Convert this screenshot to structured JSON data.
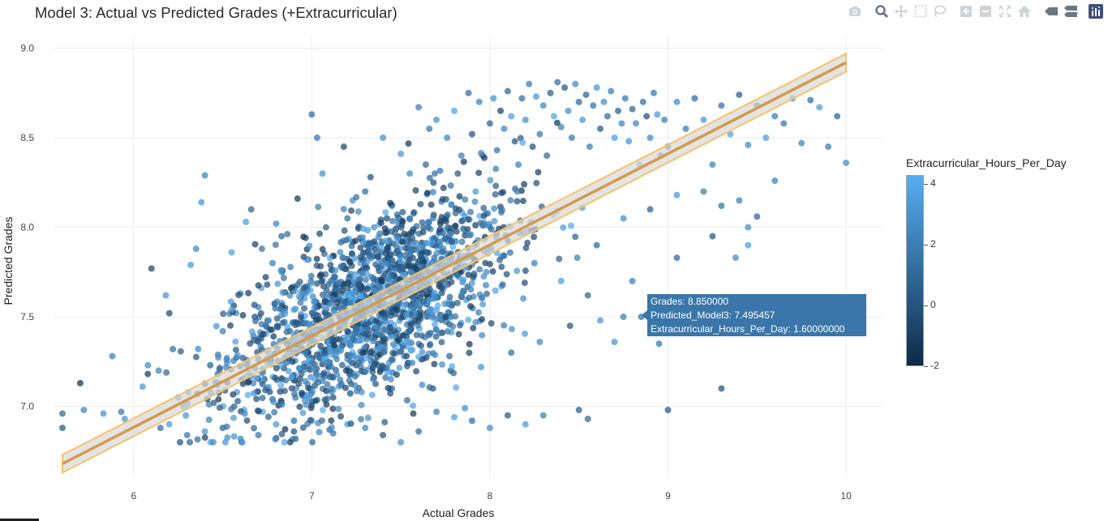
{
  "title": "Model 3: Actual vs Predicted Grades (+Extracurricular)",
  "toolbar": {
    "buttons": [
      "camera-icon",
      "zoom-icon",
      "pan-icon",
      "box-select-icon",
      "lasso-icon",
      "zoom-in-icon",
      "zoom-out-icon",
      "autoscale-icon",
      "reset-axes-icon",
      "spike-lines-icon",
      "compare-hover-icon",
      "plotly-logo-icon"
    ]
  },
  "tooltip": {
    "line1": "Grades:  8.850000",
    "line2": "Predicted_Model3: 7.495457",
    "line3": "Extracurricular_Hours_Per_Day:  1.60000000"
  },
  "colorbar": {
    "title": "Extracurricular_Hours_Per_Day",
    "ticks": [
      "4",
      "2",
      "0",
      "-2"
    ],
    "tick_values": [
      4,
      2,
      0,
      -2
    ],
    "range": [
      -2,
      4.3
    ],
    "color_low": "#0e2a47",
    "color_high": "#56aef2"
  },
  "chart_data": {
    "type": "scatter",
    "title": "Model 3: Actual vs Predicted Grades (+Extracurricular)",
    "xlabel": "Actual Grades",
    "ylabel": "Predicted Grades",
    "xlim": [
      5.55,
      10.2
    ],
    "ylim": [
      6.6,
      9.07
    ],
    "x_ticks": [
      6,
      7,
      8,
      9,
      10
    ],
    "x_tick_labels": [
      "6",
      "7",
      "8",
      "9",
      "10"
    ],
    "y_ticks": [
      7.0,
      7.5,
      8.0,
      8.5,
      9.0
    ],
    "y_tick_labels": [
      "7.0",
      "7.5",
      "8.0",
      "8.5",
      "9.0"
    ],
    "grid": true,
    "point_count_estimate": 2000,
    "color_variable": "Extracurricular_Hours_Per_Day",
    "color_range": [
      -2,
      4.3
    ],
    "fit_line": {
      "x": [
        5.6,
        10.0
      ],
      "y": [
        6.68,
        8.92
      ],
      "band_halfwidth": 0.05,
      "line_color": "#d49a4a",
      "band_color": "#f5c26b"
    },
    "points": [
      [
        5.6,
        6.96,
        1.2
      ],
      [
        5.6,
        6.88,
        0.4
      ],
      [
        5.7,
        7.13,
        -1.3
      ],
      [
        5.72,
        6.98,
        2.6
      ],
      [
        5.83,
        6.96,
        3.0
      ],
      [
        5.88,
        7.28,
        2.2
      ],
      [
        5.93,
        6.97,
        1.8
      ],
      [
        5.95,
        6.93,
        3.2
      ],
      [
        6.05,
        7.11,
        3.5
      ],
      [
        6.08,
        7.23,
        2.8
      ],
      [
        6.1,
        7.77,
        -0.4
      ],
      [
        6.14,
        7.2,
        2.4
      ],
      [
        6.18,
        7.62,
        3.1
      ],
      [
        6.2,
        7.52,
        -0.2
      ],
      [
        6.22,
        7.32,
        1.5
      ],
      [
        6.25,
        7.05,
        3.4
      ],
      [
        6.3,
        7.02,
        2.0
      ],
      [
        6.32,
        7.79,
        3.6
      ],
      [
        6.35,
        7.88,
        2.7
      ],
      [
        6.38,
        8.14,
        3.3
      ],
      [
        6.4,
        8.29,
        2.5
      ],
      [
        6.43,
        7.23,
        0.8
      ],
      [
        6.47,
        7.12,
        1.0
      ],
      [
        6.5,
        7.42,
        2.2
      ],
      [
        6.55,
        7.86,
        3.8
      ],
      [
        6.6,
        7.63,
        1.9
      ],
      [
        6.63,
        8.03,
        3.6
      ],
      [
        6.66,
        8.1,
        1.1
      ],
      [
        6.68,
        7.5,
        0.2
      ],
      [
        6.7,
        7.36,
        2.9
      ],
      [
        6.72,
        7.88,
        1.7
      ],
      [
        6.75,
        7.68,
        0.0
      ],
      [
        6.78,
        7.8,
        2.3
      ],
      [
        6.8,
        8.02,
        2.6
      ],
      [
        6.83,
        7.95,
        1.2
      ],
      [
        6.85,
        7.55,
        -0.6
      ],
      [
        6.88,
        7.28,
        3.0
      ],
      [
        6.9,
        6.92,
        1.4
      ],
      [
        6.92,
        8.16,
        -1.0
      ],
      [
        6.95,
        7.63,
        1.8
      ],
      [
        6.98,
        7.82,
        0.6
      ],
      [
        7.0,
        8.63,
        1.3
      ],
      [
        7.03,
        8.5,
        2.0
      ],
      [
        7.06,
        8.3,
        3.1
      ],
      [
        7.08,
        8.0,
        0.9
      ],
      [
        7.1,
        7.45,
        2.5
      ],
      [
        7.12,
        6.85,
        1.7
      ],
      [
        7.15,
        7.6,
        3.2
      ],
      [
        7.18,
        8.45,
        -0.3
      ],
      [
        7.2,
        8.05,
        1.5
      ],
      [
        7.23,
        8.15,
        2.8
      ],
      [
        7.25,
        7.23,
        0.2
      ],
      [
        7.28,
        7.76,
        3.7
      ],
      [
        7.3,
        8.2,
        1.4
      ],
      [
        7.33,
        8.28,
        0.1
      ],
      [
        7.35,
        8.0,
        2.9
      ],
      [
        7.38,
        7.3,
        1.9
      ],
      [
        7.4,
        8.5,
        3.0
      ],
      [
        7.43,
        7.67,
        -0.8
      ],
      [
        7.45,
        8.12,
        2.4
      ],
      [
        7.48,
        8.07,
        1.2
      ],
      [
        7.5,
        8.41,
        3.4
      ],
      [
        7.53,
        7.95,
        0.7
      ],
      [
        7.55,
        8.3,
        2.6
      ],
      [
        7.57,
        6.96,
        -1.1
      ],
      [
        7.6,
        8.67,
        2.2
      ],
      [
        7.62,
        7.8,
        3.5
      ],
      [
        7.64,
        8.35,
        1.0
      ],
      [
        7.66,
        8.55,
        2.0
      ],
      [
        7.68,
        7.1,
        0.3
      ],
      [
        7.7,
        8.6,
        3.1
      ],
      [
        7.72,
        7.97,
        1.6
      ],
      [
        7.74,
        8.22,
        -0.2
      ],
      [
        7.76,
        8.5,
        2.7
      ],
      [
        7.78,
        7.5,
        1.3
      ],
      [
        7.8,
        8.65,
        3.8
      ],
      [
        7.82,
        8.3,
        0.5
      ],
      [
        7.84,
        8.4,
        2.1
      ],
      [
        7.86,
        6.99,
        2.9
      ],
      [
        7.88,
        8.75,
        1.5
      ],
      [
        7.9,
        8.52,
        0.1
      ],
      [
        7.92,
        8.2,
        3.4
      ],
      [
        7.94,
        8.7,
        2.3
      ],
      [
        7.96,
        8.4,
        1.1
      ],
      [
        7.98,
        7.75,
        2.8
      ],
      [
        8.0,
        8.58,
        0.8
      ],
      [
        8.02,
        8.72,
        3.1
      ],
      [
        8.04,
        8.43,
        1.7
      ],
      [
        8.06,
        8.65,
        -0.5
      ],
      [
        8.08,
        8.55,
        2.5
      ],
      [
        8.1,
        8.76,
        1.0
      ],
      [
        8.12,
        8.62,
        3.6
      ],
      [
        8.14,
        8.48,
        0.4
      ],
      [
        8.16,
        8.35,
        2.2
      ],
      [
        8.18,
        8.72,
        1.4
      ],
      [
        8.2,
        8.6,
        3.0
      ],
      [
        8.22,
        8.8,
        2.0
      ],
      [
        8.24,
        8.45,
        0.0
      ],
      [
        8.26,
        8.73,
        3.3
      ],
      [
        8.28,
        8.52,
        1.8
      ],
      [
        8.3,
        8.68,
        2.6
      ],
      [
        8.32,
        8.4,
        1.2
      ],
      [
        8.34,
        8.75,
        0.6
      ],
      [
        8.36,
        8.62,
        3.9
      ],
      [
        8.38,
        8.81,
        1.5
      ],
      [
        8.4,
        8.56,
        2.4
      ],
      [
        8.42,
        8.78,
        0.3
      ],
      [
        8.44,
        8.65,
        3.0
      ],
      [
        8.46,
        8.5,
        1.9
      ],
      [
        8.48,
        8.8,
        2.7
      ],
      [
        8.5,
        8.7,
        1.1
      ],
      [
        8.52,
        8.6,
        3.5
      ],
      [
        8.54,
        8.74,
        0.9
      ],
      [
        8.56,
        8.45,
        2.2
      ],
      [
        8.58,
        8.68,
        1.6
      ],
      [
        8.6,
        8.78,
        3.2
      ],
      [
        8.62,
        8.55,
        0.5
      ],
      [
        8.64,
        8.7,
        2.9
      ],
      [
        8.66,
        8.62,
        1.3
      ],
      [
        8.68,
        8.76,
        2.1
      ],
      [
        8.7,
        8.5,
        3.7
      ],
      [
        8.72,
        8.65,
        0.7
      ],
      [
        8.74,
        8.58,
        2.5
      ],
      [
        8.76,
        8.72,
        1.8
      ],
      [
        8.78,
        8.48,
        3.1
      ],
      [
        8.8,
        8.66,
        1.0
      ],
      [
        8.82,
        8.58,
        2.6
      ],
      [
        8.84,
        8.35,
        3.4
      ],
      [
        8.86,
        8.7,
        1.5
      ],
      [
        8.88,
        8.62,
        0.2
      ],
      [
        8.9,
        8.5,
        2.8
      ],
      [
        8.92,
        8.75,
        1.9
      ],
      [
        8.94,
        8.63,
        3.6
      ],
      [
        8.96,
        8.4,
        0.8
      ],
      [
        8.98,
        8.6,
        2.3
      ],
      [
        9.0,
        8.45,
        1.4
      ],
      [
        9.05,
        8.7,
        3.0
      ],
      [
        9.1,
        8.55,
        2.0
      ],
      [
        9.15,
        8.72,
        1.2
      ],
      [
        9.2,
        8.6,
        3.3
      ],
      [
        9.25,
        8.35,
        2.4
      ],
      [
        9.3,
        8.68,
        1.6
      ],
      [
        9.35,
        8.52,
        3.8
      ],
      [
        9.4,
        8.74,
        0.9
      ],
      [
        9.45,
        8.46,
        2.7
      ],
      [
        9.5,
        8.68,
        1.1
      ],
      [
        9.55,
        8.5,
        3.5
      ],
      [
        9.6,
        8.62,
        2.2
      ],
      [
        9.65,
        8.58,
        1.8
      ],
      [
        9.7,
        8.72,
        3.1
      ],
      [
        9.75,
        8.47,
        2.5
      ],
      [
        9.8,
        8.71,
        1.4
      ],
      [
        9.85,
        8.67,
        3.6
      ],
      [
        9.9,
        8.45,
        2.0
      ],
      [
        9.95,
        8.62,
        1.0
      ],
      [
        10.0,
        8.36,
        2.8
      ],
      [
        9.0,
        6.98,
        0.5
      ],
      [
        8.95,
        7.35,
        1.9
      ],
      [
        9.3,
        7.1,
        0.3
      ],
      [
        9.05,
        7.83,
        1.2
      ],
      [
        8.85,
        7.5,
        1.6
      ],
      [
        8.8,
        7.7,
        2.3
      ],
      [
        8.7,
        7.36,
        3.2
      ],
      [
        8.5,
        6.98,
        0.8
      ],
      [
        8.55,
        6.93,
        1.0
      ],
      [
        8.3,
        6.95,
        2.2
      ],
      [
        8.2,
        6.9,
        3.4
      ],
      [
        8.1,
        6.95,
        0.6
      ],
      [
        8.0,
        6.88,
        2.8
      ],
      [
        7.9,
        6.92,
        1.5
      ],
      [
        7.8,
        6.94,
        3.7
      ],
      [
        7.7,
        6.97,
        2.1
      ],
      [
        7.6,
        6.86,
        1.3
      ],
      [
        7.5,
        6.8,
        3.0
      ],
      [
        7.4,
        6.84,
        0.4
      ],
      [
        7.3,
        6.88,
        2.5
      ],
      [
        7.2,
        6.9,
        3.6
      ],
      [
        7.1,
        6.87,
        1.1
      ],
      [
        7.0,
        6.92,
        2.9
      ],
      [
        6.9,
        6.86,
        0.2
      ],
      [
        6.8,
        6.9,
        3.3
      ],
      [
        6.7,
        6.84,
        1.7
      ],
      [
        6.6,
        6.82,
        2.6
      ],
      [
        6.5,
        6.88,
        0.9
      ],
      [
        6.4,
        6.86,
        3.1
      ],
      [
        6.3,
        6.84,
        2.0
      ],
      [
        6.2,
        6.9,
        3.5
      ],
      [
        6.15,
        6.88,
        1.4
      ],
      [
        6.28,
        7.0,
        2.7
      ],
      [
        6.45,
        7.02,
        0.7
      ],
      [
        6.62,
        6.98,
        3.9
      ],
      [
        6.78,
        7.04,
        1.2
      ],
      [
        6.95,
        7.06,
        2.4
      ],
      [
        7.12,
        7.05,
        0.0
      ],
      [
        7.28,
        7.08,
        3.0
      ],
      [
        7.45,
        7.1,
        1.8
      ],
      [
        7.62,
        7.12,
        2.9
      ],
      [
        7.78,
        7.2,
        0.6
      ],
      [
        7.95,
        7.22,
        3.2
      ],
      [
        8.12,
        7.3,
        1.5
      ],
      [
        8.28,
        7.36,
        2.6
      ],
      [
        8.45,
        7.45,
        0.3
      ],
      [
        8.62,
        7.48,
        3.4
      ],
      [
        8.75,
        7.5,
        2.0
      ],
      [
        8.55,
        7.62,
        1.0
      ],
      [
        8.4,
        7.7,
        3.7
      ],
      [
        8.25,
        7.8,
        2.2
      ],
      [
        8.6,
        7.9,
        1.3
      ],
      [
        8.75,
        8.05,
        2.9
      ],
      [
        8.9,
        8.1,
        0.8
      ],
      [
        9.05,
        8.18,
        3.3
      ],
      [
        9.2,
        8.2,
        2.1
      ],
      [
        9.3,
        8.12,
        1.6
      ],
      [
        9.45,
        8.0,
        3.0
      ],
      [
        9.6,
        8.26,
        2.5
      ],
      [
        9.25,
        7.95,
        0.4
      ],
      [
        9.45,
        7.9,
        3.6
      ],
      [
        9.38,
        7.83,
        2.7
      ],
      [
        9.5,
        8.06,
        1.1
      ],
      [
        9.4,
        8.15,
        2.3
      ]
    ]
  }
}
